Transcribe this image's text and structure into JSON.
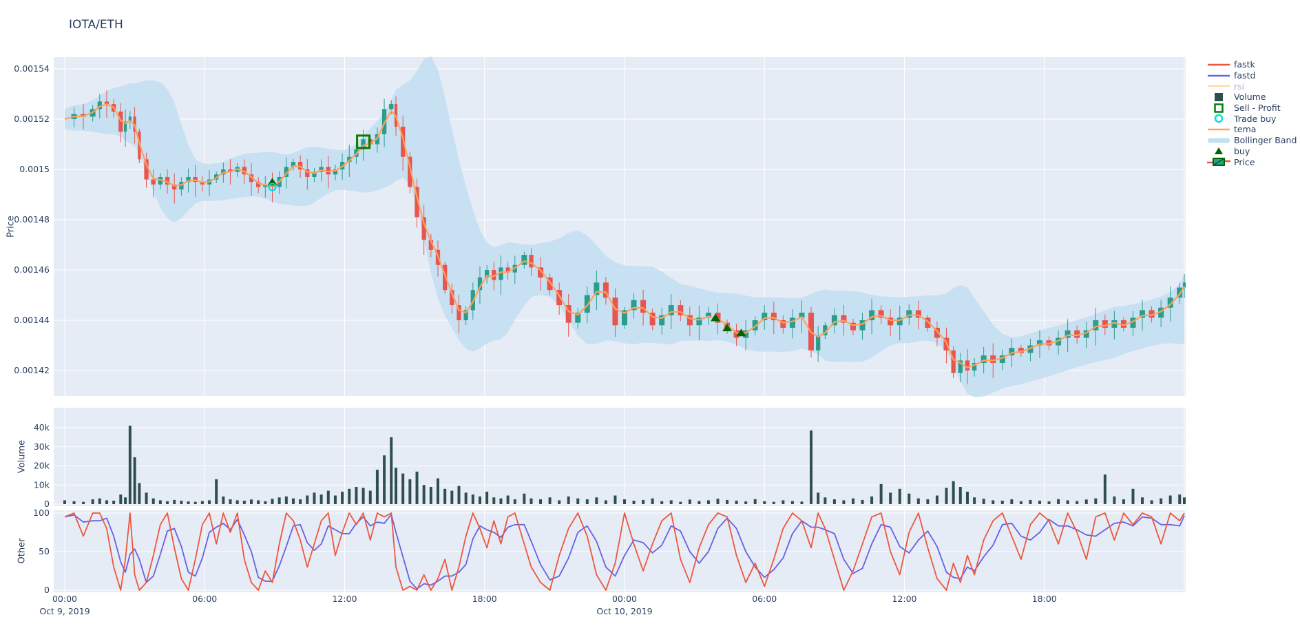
{
  "header": {
    "title": "IOTA/ETH"
  },
  "colors": {
    "paper": "#ffffff",
    "plot_background": "#e5ecf6",
    "grid": "#ffffff",
    "axis_text": "#2a3f5f",
    "candle_up": "#2b9e8b",
    "candle_down": "#e8544e",
    "tema": "#ffa15a",
    "fastk": "#ef553b",
    "fastd": "#6660e4",
    "rsi_muted": "#ffd9a3",
    "volume_bar": "#2f4f4f",
    "bollinger": "#c3e0f3",
    "buy_marker": "#006400",
    "sell_profit_marker": "#008000",
    "trade_buy_marker": "#00dede"
  },
  "legend": {
    "items": [
      {
        "id": "fastk",
        "label": "fastk",
        "swatch": "line",
        "color": "#ef553b",
        "muted": false
      },
      {
        "id": "fastd",
        "label": "fastd",
        "swatch": "line",
        "color": "#6660e4",
        "muted": false
      },
      {
        "id": "rsi",
        "label": "rsi",
        "swatch": "line",
        "color": "#ffd9a3",
        "muted": true
      },
      {
        "id": "volume",
        "label": "Volume",
        "swatch": "square",
        "color": "#2f4f4f",
        "muted": false
      },
      {
        "id": "sell-profit",
        "label": "Sell - Profit",
        "swatch": "square-open",
        "color": "#008000",
        "muted": false
      },
      {
        "id": "trade-buy",
        "label": "Trade buy",
        "swatch": "circle-open",
        "color": "#00dede",
        "muted": false
      },
      {
        "id": "tema",
        "label": "tema",
        "swatch": "line",
        "color": "#ffa15a",
        "muted": false
      },
      {
        "id": "bollinger-band",
        "label": "Bollinger Band",
        "swatch": "band",
        "color": "#c3e0f3",
        "muted": false
      },
      {
        "id": "buy",
        "label": "buy",
        "swatch": "triangle",
        "color": "#006400",
        "muted": false
      },
      {
        "id": "price",
        "label": "Price",
        "swatch": "candle",
        "color": "#2b9e8b",
        "color2": "#e8544e",
        "muted": false
      }
    ]
  },
  "axes": {
    "x": {
      "start_label_date": "Oct 9, 2019",
      "ticks": [
        {
          "t": 0,
          "label": "00:00",
          "date": "Oct 9, 2019"
        },
        {
          "t": 6,
          "label": "06:00",
          "date": ""
        },
        {
          "t": 12,
          "label": "12:00",
          "date": ""
        },
        {
          "t": 18,
          "label": "18:00",
          "date": ""
        },
        {
          "t": 24,
          "label": "00:00",
          "date": "Oct 10, 2019"
        },
        {
          "t": 30,
          "label": "06:00",
          "date": ""
        },
        {
          "t": 36,
          "label": "12:00",
          "date": ""
        },
        {
          "t": 42,
          "label": "18:00",
          "date": ""
        }
      ],
      "range_hours": [
        -0.5,
        48.05
      ]
    },
    "price": {
      "title": "Price",
      "tick_values": [
        1540,
        1520,
        1500,
        1480,
        1460,
        1440,
        1420
      ],
      "tick_labels": [
        "0.00154",
        "0.00152",
        "0.0015",
        "0.00148",
        "0.00146",
        "0.00144",
        "0.00142"
      ]
    },
    "volume": {
      "title": "Volume",
      "tick_values": [
        40,
        30,
        20,
        10,
        0
      ],
      "tick_labels": [
        "40k",
        "30k",
        "20k",
        "10k",
        "0"
      ]
    },
    "other": {
      "title": "Other",
      "tick_values": [
        100,
        50,
        0
      ],
      "tick_labels": [
        "100",
        "50",
        "0"
      ]
    }
  },
  "chart_data": [
    {
      "type": "candlestick",
      "panel": "price",
      "title": "IOTA/ETH",
      "ylabel": "Price",
      "price_scale_note": "price values below are multiplied by 1e6 (0.001520 stored as 1520)",
      "x_hours_from_oct9_midnight": [
        0,
        0.4,
        0.8,
        1.2,
        1.5,
        1.8,
        2.1,
        2.4,
        2.6,
        2.8,
        3.0,
        3.2,
        3.5,
        3.8,
        4.1,
        4.4,
        4.7,
        5.0,
        5.3,
        5.6,
        5.9,
        6.2,
        6.5,
        6.8,
        7.1,
        7.4,
        7.7,
        8.0,
        8.3,
        8.6,
        8.9,
        9.2,
        9.5,
        9.8,
        10.1,
        10.4,
        10.7,
        11.0,
        11.3,
        11.6,
        11.9,
        12.2,
        12.5,
        12.8,
        13.1,
        13.4,
        13.7,
        14.0,
        14.2,
        14.5,
        14.8,
        15.1,
        15.4,
        15.7,
        16.0,
        16.3,
        16.6,
        16.9,
        17.2,
        17.5,
        17.8,
        18.1,
        18.4,
        18.7,
        19.0,
        19.3,
        19.7,
        20.0,
        20.4,
        20.8,
        21.2,
        21.6,
        22.0,
        22.4,
        22.8,
        23.2,
        23.6,
        24.0,
        24.4,
        24.8,
        25.2,
        25.6,
        26.0,
        26.4,
        26.8,
        27.2,
        27.6,
        28.0,
        28.4,
        28.8,
        29.2,
        29.6,
        30.0,
        30.4,
        30.8,
        31.2,
        31.6,
        32.0,
        32.3,
        32.6,
        33.0,
        33.4,
        33.8,
        34.2,
        34.6,
        35.0,
        35.4,
        35.8,
        36.2,
        36.6,
        37.0,
        37.4,
        37.8,
        38.1,
        38.4,
        38.7,
        39.0,
        39.4,
        39.8,
        40.2,
        40.6,
        41.0,
        41.4,
        41.8,
        42.2,
        42.6,
        43.0,
        43.4,
        43.8,
        44.2,
        44.6,
        45.0,
        45.4,
        45.8,
        46.2,
        46.6,
        47.0,
        47.4,
        47.8,
        48.0
      ],
      "close_micro": [
        1520,
        1522,
        1521,
        1524,
        1527,
        1526,
        1523,
        1515,
        1519,
        1521,
        1515,
        1504,
        1496,
        1494,
        1497,
        1494,
        1492,
        1495,
        1497,
        1495,
        1494,
        1496,
        1498,
        1500,
        1499,
        1501,
        1498,
        1495,
        1493,
        1494,
        1493,
        1497,
        1501,
        1503,
        1500,
        1497,
        1499,
        1501,
        1498,
        1500,
        1503,
        1505,
        1508,
        1512,
        1510,
        1514,
        1524,
        1526,
        1517,
        1505,
        1493,
        1481,
        1472,
        1468,
        1462,
        1452,
        1446,
        1440,
        1444,
        1452,
        1457,
        1460,
        1456,
        1461,
        1459,
        1462,
        1466,
        1461,
        1457,
        1452,
        1446,
        1439,
        1443,
        1450,
        1455,
        1449,
        1438,
        1444,
        1448,
        1443,
        1438,
        1442,
        1446,
        1442,
        1438,
        1441,
        1443,
        1439,
        1436,
        1433,
        1436,
        1440,
        1443,
        1440,
        1437,
        1441,
        1443,
        1428,
        1434,
        1438,
        1442,
        1439,
        1436,
        1440,
        1444,
        1441,
        1438,
        1441,
        1444,
        1441,
        1437,
        1433,
        1428,
        1419,
        1424,
        1420,
        1423,
        1426,
        1423,
        1426,
        1429,
        1427,
        1430,
        1432,
        1430,
        1433,
        1436,
        1433,
        1436,
        1440,
        1437,
        1440,
        1437,
        1441,
        1444,
        1441,
        1445,
        1449,
        1453,
        1455
      ],
      "overlays": [
        {
          "name": "tema",
          "type": "line",
          "color": "#ffa15a",
          "derivation": "weighted MA(3) of close"
        },
        {
          "name": "Bollinger Band",
          "type": "filled-band",
          "color": "#c3e0f3",
          "derivation": "MA(7) +/- 2.1 std + 4 micro pad"
        },
        {
          "name": "rsi",
          "type": "line",
          "visible": false
        }
      ],
      "markers": [
        {
          "name": "buy",
          "symbol": "triangle-up",
          "color": "#006400",
          "points_t_price": [
            [
              8.9,
              1495
            ],
            [
              27.9,
              1441
            ],
            [
              28.4,
              1437
            ],
            [
              29.0,
              1435
            ]
          ]
        },
        {
          "name": "Sell - Profit",
          "symbol": "square-open",
          "color": "#008000",
          "points_t_price": [
            [
              12.8,
              1511
            ]
          ]
        },
        {
          "name": "Trade buy",
          "symbol": "circle-open",
          "color": "#00dede",
          "points_t_price": [
            [
              8.9,
              1493
            ]
          ]
        }
      ]
    },
    {
      "type": "bar",
      "panel": "volume",
      "name": "Volume",
      "ylabel": "Volume",
      "unit": "thousands",
      "values_k": [
        2,
        1.5,
        1.2,
        2.5,
        3,
        2,
        1.8,
        5,
        3.5,
        41,
        24.5,
        11,
        6,
        3,
        2,
        1.5,
        2.2,
        1.8,
        1.4,
        1.2,
        1.6,
        2,
        13,
        4,
        2.5,
        2,
        1.8,
        2.4,
        2,
        1.5,
        2.8,
        3.5,
        4,
        3,
        2.5,
        4.5,
        6,
        5,
        7,
        4.5,
        6.5,
        8,
        9,
        8.5,
        7,
        18,
        25.5,
        35,
        19,
        16,
        13,
        17,
        10,
        9,
        13.5,
        8,
        7,
        9.5,
        6,
        5,
        4,
        6.5,
        3.5,
        3,
        4.5,
        2.5,
        5.5,
        3,
        2.5,
        3.5,
        2,
        4,
        3,
        2.5,
        3.5,
        2,
        4.5,
        2.5,
        1.8,
        2.2,
        3,
        1.5,
        2,
        1.2,
        2.4,
        1.6,
        2,
        2.8,
        2.2,
        1.8,
        1.4,
        2.6,
        1.5,
        1.2,
        2,
        1.6,
        1.3,
        38.5,
        6,
        3.5,
        2.5,
        2,
        3,
        2.2,
        4,
        10.5,
        6,
        8,
        5.5,
        3,
        2.5,
        4.5,
        8.5,
        12,
        9,
        6.5,
        3.5,
        2.8,
        2,
        1.8,
        2.5,
        1.5,
        2.2,
        1.8,
        1.4,
        2.6,
        2,
        1.6,
        2.4,
        3,
        15.5,
        4,
        2.5,
        8,
        3.5,
        2,
        3,
        4.5,
        5,
        3.5
      ],
      "ylim": [
        0,
        40
      ]
    },
    {
      "type": "line",
      "panel": "other",
      "ylabel": "Other",
      "ylim": [
        0,
        100
      ],
      "series": [
        {
          "name": "fastk",
          "color": "#ef553b",
          "values": [
            95,
            100,
            70,
            100,
            100,
            80,
            30,
            0,
            40,
            100,
            20,
            0,
            10,
            45,
            85,
            100,
            55,
            15,
            0,
            40,
            85,
            100,
            60,
            100,
            75,
            100,
            40,
            10,
            0,
            25,
            10,
            60,
            100,
            90,
            65,
            30,
            60,
            90,
            100,
            45,
            75,
            100,
            85,
            100,
            65,
            100,
            95,
            100,
            30,
            0,
            5,
            0,
            20,
            0,
            15,
            40,
            0,
            30,
            70,
            100,
            80,
            55,
            90,
            60,
            95,
            100,
            60,
            30,
            10,
            0,
            45,
            80,
            100,
            70,
            20,
            0,
            35,
            100,
            60,
            25,
            60,
            90,
            100,
            40,
            10,
            55,
            85,
            100,
            95,
            45,
            10,
            35,
            5,
            40,
            80,
            100,
            90,
            55,
            100,
            80,
            40,
            0,
            25,
            60,
            95,
            100,
            50,
            20,
            75,
            100,
            55,
            15,
            0,
            35,
            10,
            45,
            20,
            65,
            90,
            100,
            70,
            40,
            85,
            100,
            90,
            60,
            100,
            75,
            40,
            95,
            100,
            65,
            100,
            85,
            100,
            95,
            60,
            100,
            90,
            100
          ]
        },
        {
          "name": "fastd",
          "color": "#6660e4",
          "derivation": "MA(3) of fastk"
        },
        {
          "name": "rsi",
          "visible": false
        }
      ]
    }
  ]
}
